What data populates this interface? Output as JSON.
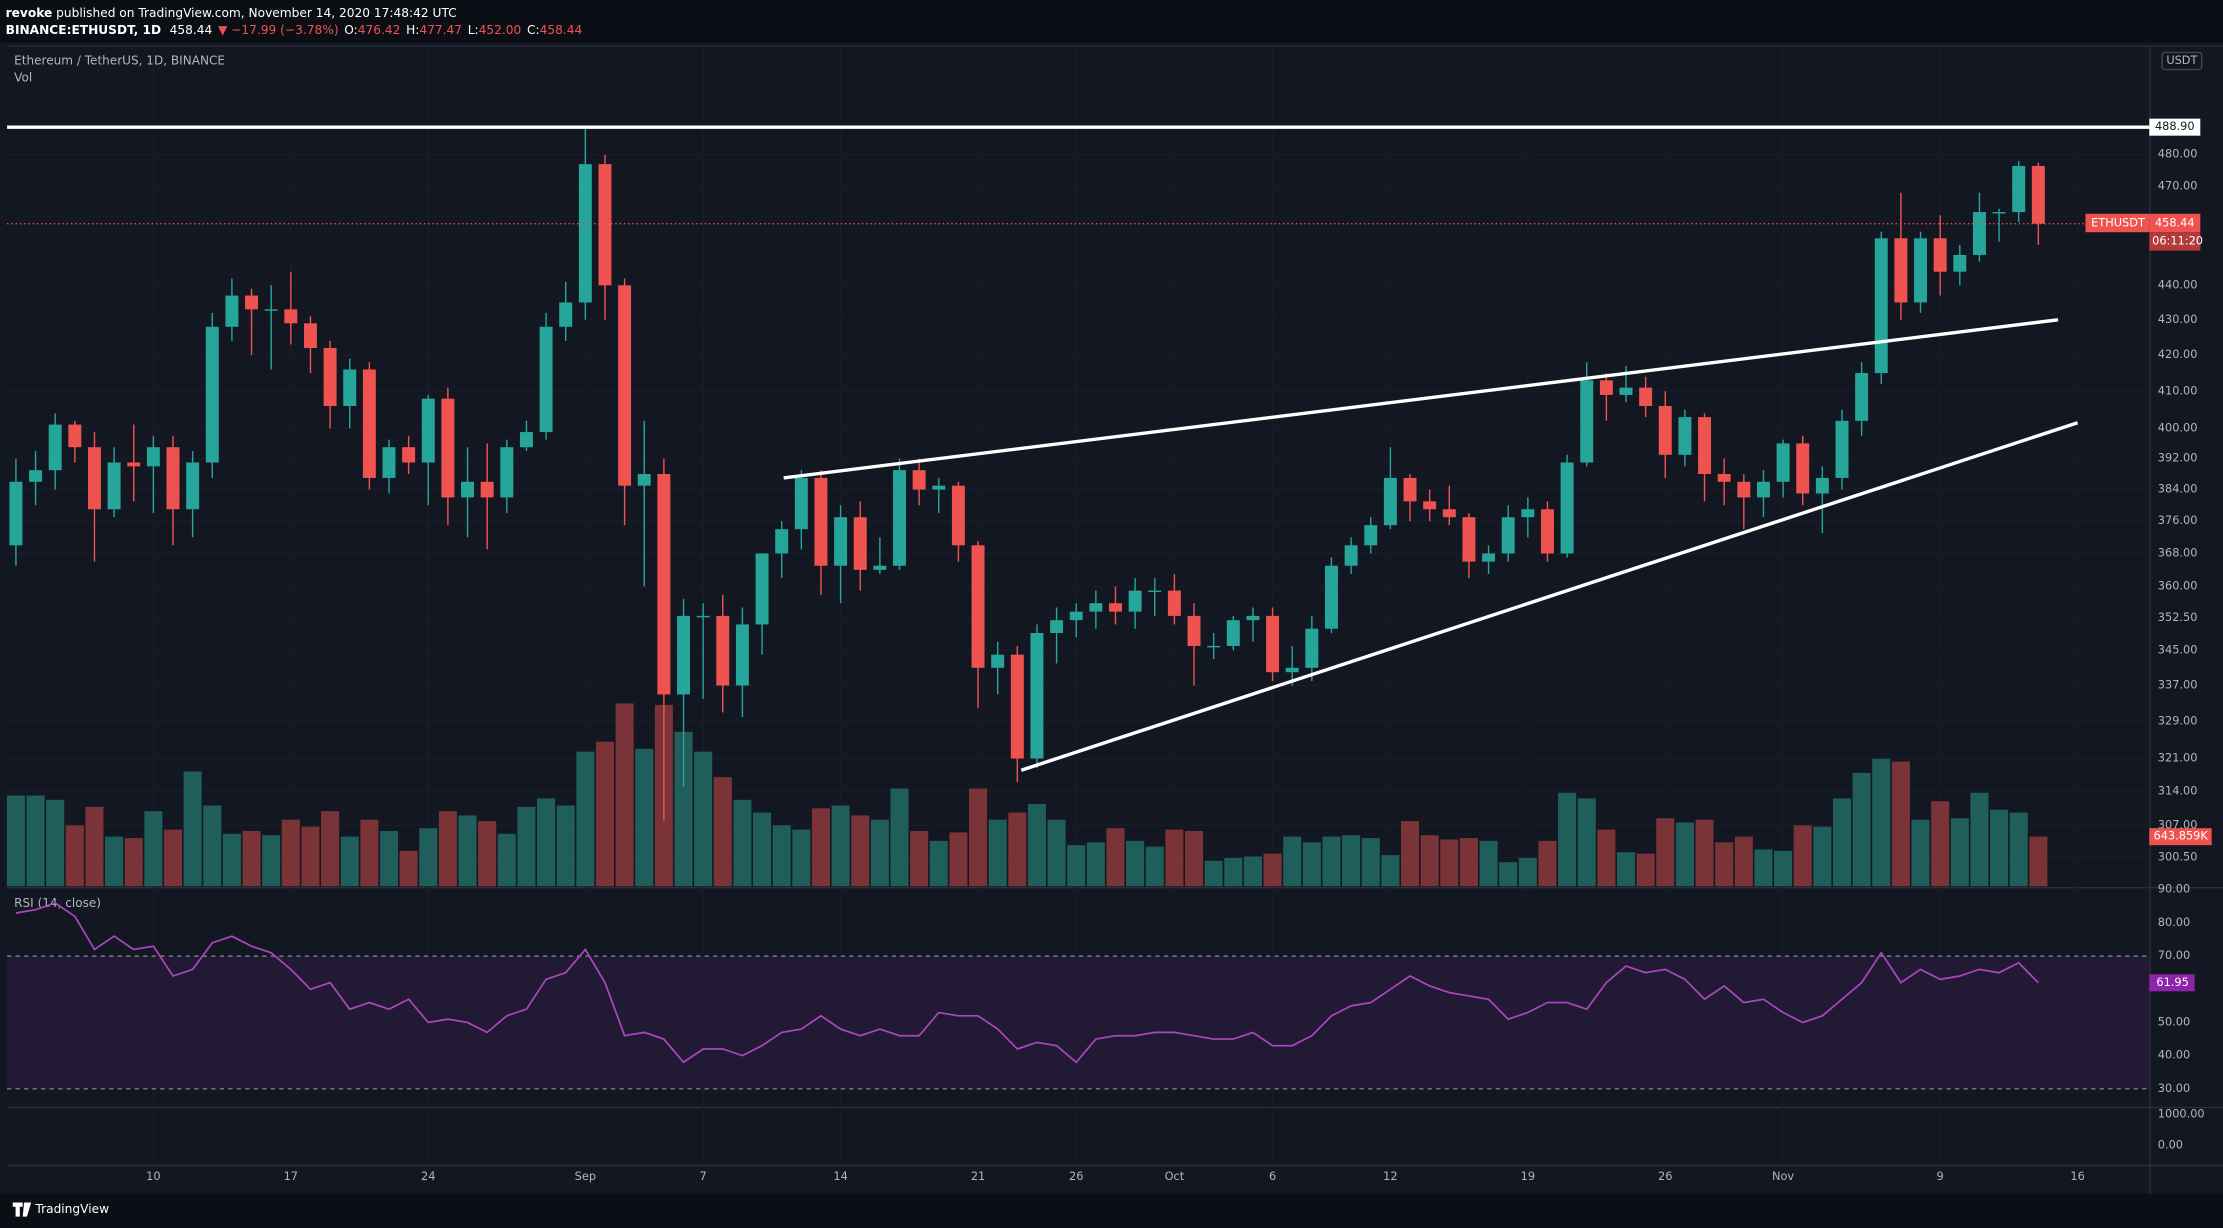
{
  "header": {
    "author": "revoke",
    "published": " published on TradingView.com, November 14, 2020 17:48:42 UTC",
    "symbol": "BINANCE:ETHUSDT, 1D",
    "price": "458.44",
    "change": "▼ −17.99 (−3.78%)",
    "ohlc": [
      [
        "O:",
        "476.42"
      ],
      [
        "H:",
        "477.47"
      ],
      [
        "L:",
        "452.00"
      ],
      [
        "C:",
        "458.44"
      ]
    ],
    "instrument": "Ethereum / TetherUS, 1D, BINANCE",
    "vol_title": "Vol",
    "rsi_title": "RSI (14, close)",
    "currency": "USDT",
    "symbol_tag": "ETHUSDT",
    "countdown": "06:11:20",
    "lower_ticks": [
      "1000.00",
      "0.00"
    ],
    "brand": "TradingView"
  },
  "chart_data": {
    "type": "candlestick",
    "log_scale": true,
    "grid": true,
    "up_color": "#26a69a",
    "down_color": "#ef5350",
    "vol_up_color": "#1f5e5b",
    "vol_down_color": "#7a3337",
    "xlim": [
      -0.45,
      108.65
    ],
    "xticks": [
      {
        "value": 7,
        "label": "10"
      },
      {
        "value": 14,
        "label": "17"
      },
      {
        "value": 21,
        "label": "24"
      },
      {
        "value": 29,
        "label": "Sep"
      },
      {
        "value": 35,
        "label": "7"
      },
      {
        "value": 42,
        "label": "14"
      },
      {
        "value": 49,
        "label": "21"
      },
      {
        "value": 54,
        "label": "26"
      },
      {
        "value": 59,
        "label": "Oct"
      },
      {
        "value": 64,
        "label": "6"
      },
      {
        "value": 70,
        "label": "12"
      },
      {
        "value": 77,
        "label": "19"
      },
      {
        "value": 84,
        "label": "26"
      },
      {
        "value": 90,
        "label": "Nov"
      },
      {
        "value": 98,
        "label": "9"
      },
      {
        "value": 105,
        "label": "16"
      }
    ],
    "ylim": [
      294.8,
      515.8
    ],
    "yticks": [
      {
        "value": 300.5,
        "label": "300.50"
      },
      {
        "value": 307,
        "label": "307.00"
      },
      {
        "value": 314,
        "label": "314.00"
      },
      {
        "value": 321,
        "label": "321.00"
      },
      {
        "value": 329,
        "label": "329.00"
      },
      {
        "value": 337,
        "label": "337.00"
      },
      {
        "value": 345,
        "label": "345.00"
      },
      {
        "value": 352.5,
        "label": "352.50"
      },
      {
        "value": 360,
        "label": "360.00"
      },
      {
        "value": 368,
        "label": "368.00"
      },
      {
        "value": 376,
        "label": "376.00"
      },
      {
        "value": 384,
        "label": "384.00"
      },
      {
        "value": 392,
        "label": "392.00"
      },
      {
        "value": 400,
        "label": "400.00"
      },
      {
        "value": 410,
        "label": "410.00"
      },
      {
        "value": 420,
        "label": "420.00"
      },
      {
        "value": 430,
        "label": "430.00"
      },
      {
        "value": 440,
        "label": "440.00"
      },
      {
        "value": 470,
        "label": "470.00"
      },
      {
        "value": 480,
        "label": "480.00"
      }
    ],
    "open": [
      370,
      386,
      389,
      401,
      395,
      379,
      391,
      390,
      395,
      379,
      391,
      428,
      437,
      433,
      433,
      429,
      422,
      406,
      416,
      387,
      395,
      391,
      408,
      382,
      386,
      382,
      395,
      399,
      428,
      435,
      477,
      440,
      385,
      388,
      335,
      353,
      353,
      337,
      351,
      368,
      374,
      387,
      365,
      377,
      364,
      365,
      389,
      384,
      385,
      370,
      341,
      344,
      321,
      349,
      352,
      354,
      356,
      354,
      359,
      359,
      353,
      346,
      346,
      352,
      353,
      340,
      341,
      350,
      365,
      370,
      375,
      387,
      381,
      379,
      377,
      366,
      368,
      377,
      379,
      368,
      391,
      413,
      409,
      411,
      406,
      393,
      403,
      388,
      386,
      382,
      386,
      396,
      383,
      387,
      402,
      415,
      454,
      435,
      454,
      444,
      449,
      462,
      462,
      476.42
    ],
    "high": [
      392,
      394,
      404,
      402,
      399,
      395,
      401,
      398,
      398,
      394,
      432,
      442,
      439,
      440,
      444,
      431,
      424,
      419,
      418,
      397,
      398,
      409,
      411,
      395,
      396,
      397,
      402,
      432,
      441,
      488.84,
      480,
      442,
      402,
      392,
      357,
      356,
      358,
      355,
      368,
      376,
      389,
      389,
      380,
      381,
      372,
      392,
      392,
      387,
      386,
      371,
      347,
      346,
      351,
      355,
      356,
      359,
      360,
      362,
      362,
      363,
      356,
      349,
      353,
      355,
      355,
      346,
      353,
      367,
      372,
      377,
      395,
      388,
      384,
      385,
      378,
      370,
      380,
      382,
      381,
      393,
      418,
      415,
      417,
      414,
      410,
      405,
      404,
      392,
      388,
      389,
      397,
      398,
      390,
      405,
      418,
      456,
      468,
      456,
      461,
      452,
      468,
      463,
      478,
      477.47
    ],
    "low": [
      365,
      380,
      384,
      391,
      366,
      377,
      381,
      378,
      370,
      372,
      387,
      424,
      420,
      416,
      423,
      415,
      400,
      400,
      384,
      383,
      388,
      380,
      375,
      372,
      369,
      378,
      394,
      397,
      424,
      430,
      430,
      375,
      360,
      308,
      315,
      334,
      331,
      330,
      344,
      362,
      369,
      358,
      356,
      359,
      363,
      364,
      380,
      378,
      366,
      332,
      335,
      316,
      319,
      342,
      348,
      350,
      351,
      350,
      353,
      351,
      337,
      343,
      345,
      347,
      338,
      337,
      338,
      349,
      363,
      368,
      374,
      376,
      376,
      375,
      362,
      363,
      366,
      372,
      366,
      367,
      390,
      402,
      407,
      403,
      387,
      390,
      381,
      380,
      374,
      377,
      382,
      380,
      373,
      384,
      398,
      412,
      430,
      432,
      437,
      440,
      447,
      453,
      459,
      452
    ],
    "close": [
      386,
      389,
      401,
      395,
      379,
      391,
      390,
      395,
      379,
      391,
      428,
      437,
      433,
      433,
      429,
      422,
      406,
      416,
      387,
      395,
      391,
      408,
      382,
      386,
      382,
      395,
      399,
      428,
      435,
      477,
      440,
      385,
      388,
      335,
      353,
      353,
      337,
      351,
      368,
      374,
      387,
      365,
      377,
      364,
      365,
      389,
      384,
      385,
      370,
      341,
      344,
      321,
      349,
      352,
      354,
      356,
      354,
      359,
      359,
      353,
      346,
      346,
      352,
      353,
      340,
      341,
      350,
      365,
      370,
      375,
      387,
      381,
      379,
      377,
      366,
      368,
      377,
      379,
      368,
      391,
      413,
      409,
      411,
      406,
      393,
      403,
      388,
      386,
      382,
      386,
      396,
      383,
      387,
      402,
      415,
      454,
      435,
      454,
      444,
      449,
      462,
      462,
      476.42,
      458.44
    ],
    "volume": [
      1177600,
      1177600,
      1122400,
      791200,
      1030400,
      644000,
      625600,
      975200,
      736000,
      1490400,
      1048800,
      680800,
      717600,
      662400,
      864800,
      772800,
      975200,
      644000,
      864800,
      717600,
      460000,
      754400,
      975200,
      920000,
      846400,
      680800,
      1030400,
      1140800,
      1048800,
      1748000,
      1876800,
      2373600,
      1784800,
      2355200,
      2005600,
      1748000,
      1416800,
      1122400,
      956800,
      791200,
      736000,
      1012000,
      1048800,
      920000,
      864800,
      1269600,
      717600,
      588800,
      699200,
      1269600,
      864800,
      956800,
      1067200,
      864800,
      533600,
      570400,
      754400,
      588800,
      515200,
      736000,
      717600,
      331200,
      368000,
      386400,
      423200,
      644000,
      570400,
      644000,
      662400,
      625600,
      404800,
      846400,
      662400,
      607200,
      625600,
      588800,
      312800,
      368000,
      588800,
      1214400,
      1140800,
      736000,
      441600,
      423200,
      883200,
      828000,
      864800,
      570400,
      644000,
      478400,
      460000,
      791200,
      772800,
      1140800,
      1472000,
      1656000,
      1619200,
      864800,
      1104000,
      883200,
      1214400,
      993600,
      956800,
      643859
    ],
    "vol_ylim": [
      0,
      10900000
    ],
    "vol_last_label": "643.859K",
    "hline": {
      "value": 488.9,
      "label": "488.90"
    },
    "last_price": 458.44,
    "trendlines": [
      {
        "from": [
          39.1,
          387
        ],
        "to": [
          104,
          430
        ]
      },
      {
        "from": [
          51.2,
          318.5
        ],
        "to": [
          105,
          401.5
        ]
      }
    ],
    "rsi": {
      "values": [
        83,
        84,
        86,
        82,
        72,
        76,
        72,
        73,
        64,
        66,
        74,
        76,
        73,
        71,
        66,
        60,
        62,
        54,
        56,
        54,
        57,
        50,
        51,
        50,
        47,
        52,
        54,
        63,
        65,
        72,
        62,
        46,
        47,
        45,
        38,
        42,
        42,
        40,
        43,
        47,
        48,
        52,
        48,
        46,
        48,
        46,
        46,
        53,
        52,
        52,
        48,
        42,
        44,
        43,
        38,
        45,
        46,
        46,
        47,
        47,
        46,
        45,
        45,
        47,
        43,
        43,
        46,
        52,
        55,
        56,
        60,
        64,
        61,
        59,
        58,
        57,
        51,
        53,
        56,
        56,
        54,
        62,
        67,
        65,
        66,
        63,
        57,
        61,
        56,
        57,
        53,
        50,
        52,
        57,
        62,
        71,
        62,
        66,
        63,
        64,
        66,
        65,
        68,
        61.95
      ],
      "color": "#ab47bc",
      "ylim": [
        24.8,
        90.2
      ],
      "bands": [
        30,
        70
      ],
      "yticks": [
        {
          "value": 90,
          "label": "90.00"
        },
        {
          "value": 80,
          "label": "80.00"
        },
        {
          "value": 70,
          "label": "70.00"
        },
        {
          "value": 50,
          "label": "50.00"
        },
        {
          "value": 40,
          "label": "40.00"
        },
        {
          "value": 30,
          "label": "30.00"
        }
      ]
    }
  }
}
